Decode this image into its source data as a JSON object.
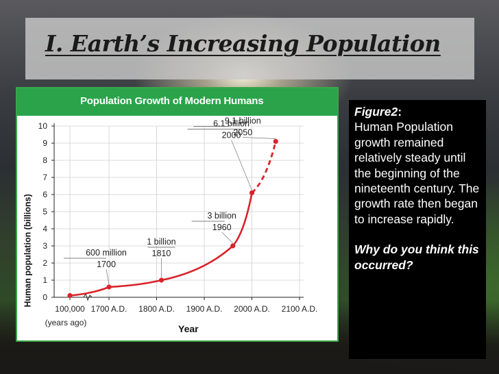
{
  "slide": {
    "title": "I.  Earth’s Increasing Population"
  },
  "caption": {
    "label": "Figure2",
    "label_suffix": ":",
    "body": "Human Population growth remained relatively steady until the beginning of the nineteenth century.  The growth rate then began to increase rapidly.",
    "question": "Why do you think this occurred?"
  },
  "colors": {
    "chart_header": "#2aa34a",
    "line": "#d8232a",
    "text_box": "#000000"
  },
  "chart_data": {
    "type": "line",
    "title": "Population Growth of Modern Humans",
    "xlabel": "Year",
    "ylabel": "Human population (billions)",
    "ylim": [
      0,
      10
    ],
    "yticks": [
      "0",
      "1",
      "2",
      "3",
      "4",
      "5",
      "6",
      "7",
      "8",
      "9",
      "10"
    ],
    "xticks": [
      {
        "label": "100,000",
        "sublabel": "(years ago)",
        "year": -100000
      },
      {
        "label": "1700 A.D.",
        "year": 1700
      },
      {
        "label": "1800 A.D.",
        "year": 1800
      },
      {
        "label": "1900 A.D.",
        "year": 1900
      },
      {
        "label": "2000 A.D.",
        "year": 2000
      },
      {
        "label": "2100 A.D.",
        "year": 2100
      }
    ],
    "axis_break": true,
    "grid": true,
    "series": [
      {
        "points": [
          {
            "year": -100000,
            "value": 0.1
          },
          {
            "year": 1700,
            "value": 0.6
          },
          {
            "year": 1810,
            "value": 1.0
          },
          {
            "year": 1960,
            "value": 3.0
          },
          {
            "year": 2000,
            "value": 6.1
          },
          {
            "year": 2050,
            "value": 9.1
          }
        ],
        "projected_from_year": 2000
      }
    ],
    "annotations": [
      {
        "line1": "600 million",
        "line2": "1700",
        "year": 1700,
        "value": 0.6
      },
      {
        "line1": "1 billion",
        "line2": "1810",
        "year": 1810,
        "value": 1.0
      },
      {
        "line1": "3 billion",
        "line2": "1960",
        "year": 1960,
        "value": 3.0
      },
      {
        "line1": "6.1 billion",
        "line2": "2000",
        "year": 2000,
        "value": 6.1
      },
      {
        "line1": "9.1 billion",
        "line2": "2050",
        "year": 2050,
        "value": 9.1
      }
    ]
  }
}
